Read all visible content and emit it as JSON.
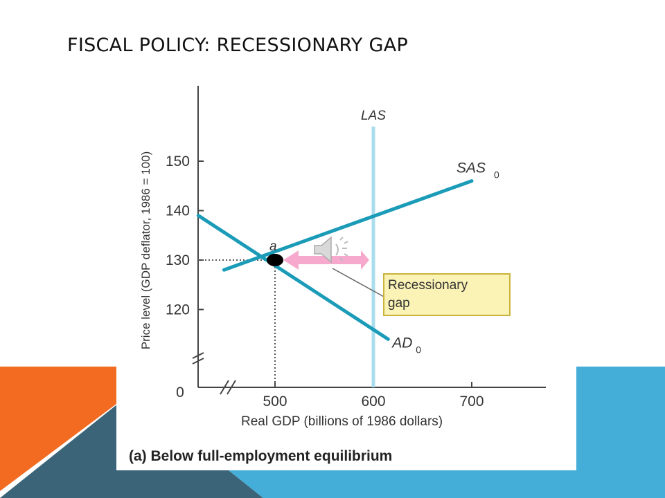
{
  "slide": {
    "title": "FISCAL POLICY: RECESSIONARY GAP"
  },
  "colors": {
    "orange": "#f26b21",
    "dark_teal": "#3b6478",
    "light_blue": "#44aed9",
    "curve_teal": "#1a9bb8",
    "las_line": "#a9dcec",
    "gap_arrow": "#f6a9cc",
    "gap_label_bg": "#fbf2b5",
    "gap_label_border": "#c9b33a"
  },
  "icons": {
    "speaker": "speaker-icon"
  },
  "chart_data": {
    "type": "line",
    "ylabel": "Price level (GDP deflator, 1986 = 100)",
    "xlabel": "Real GDP (billions of 1986 dollars)",
    "caption": "(a) Below full-employment equilibrium",
    "x_ticks": [
      "500",
      "600",
      "700"
    ],
    "y_ticks": [
      "120",
      "130",
      "140",
      "150"
    ],
    "origin_label": "0",
    "xlim": [
      420,
      760
    ],
    "ylim": [
      108,
      162
    ],
    "series": [
      {
        "name": "SAS",
        "subscript": "0",
        "x": [
          420,
          700
        ],
        "y": [
          126,
          146
        ]
      },
      {
        "name": "AD",
        "subscript": "0",
        "x": [
          415,
          615
        ],
        "y": [
          139,
          114
        ]
      },
      {
        "name": "LAS",
        "x": [
          600,
          600
        ],
        "y": [
          108,
          157
        ]
      }
    ],
    "equilibrium": {
      "label": "a",
      "x": 500,
      "y": 130
    },
    "gap_arrow": {
      "x_from": 500,
      "x_to": 600,
      "y": 130
    },
    "annotation": {
      "line1": "Recessionary",
      "line2": "gap"
    }
  }
}
